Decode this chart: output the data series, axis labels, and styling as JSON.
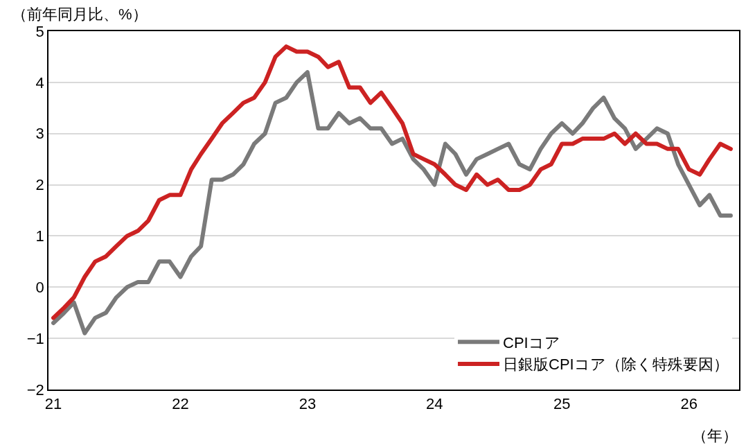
{
  "chart_data": {
    "type": "line",
    "ylabel": "（前年同月比、%）",
    "xlabel": "（年）",
    "x": [
      "2021-01",
      "2021-02",
      "2021-03",
      "2021-04",
      "2021-05",
      "2021-06",
      "2021-07",
      "2021-08",
      "2021-09",
      "2021-10",
      "2021-11",
      "2021-12",
      "2022-01",
      "2022-02",
      "2022-03",
      "2022-04",
      "2022-05",
      "2022-06",
      "2022-07",
      "2022-08",
      "2022-09",
      "2022-10",
      "2022-11",
      "2022-12",
      "2023-01",
      "2023-02",
      "2023-03",
      "2023-04",
      "2023-05",
      "2023-06",
      "2023-07",
      "2023-08",
      "2023-09",
      "2023-10",
      "2023-11",
      "2023-12",
      "2024-01",
      "2024-02",
      "2024-03",
      "2024-04",
      "2024-05",
      "2024-06",
      "2024-07",
      "2024-08",
      "2024-09",
      "2024-10",
      "2024-11",
      "2024-12",
      "2025-01",
      "2025-02",
      "2025-03",
      "2025-04",
      "2025-05",
      "2025-06",
      "2025-07",
      "2025-08",
      "2025-09",
      "2025-10",
      "2025-11",
      "2025-12",
      "2026-01",
      "2026-02",
      "2026-03",
      "2026-04",
      "2026-05"
    ],
    "series": [
      {
        "name": "CPIコア",
        "color": "#7a7a7a",
        "values": [
          -0.7,
          -0.5,
          -0.3,
          -0.9,
          -0.6,
          -0.5,
          -0.2,
          0.0,
          0.1,
          0.1,
          0.5,
          0.5,
          0.2,
          0.6,
          0.8,
          2.1,
          2.1,
          2.2,
          2.4,
          2.8,
          3.0,
          3.6,
          3.7,
          4.0,
          4.2,
          3.1,
          3.1,
          3.4,
          3.2,
          3.3,
          3.1,
          3.1,
          2.8,
          2.9,
          2.5,
          2.3,
          2.0,
          2.8,
          2.6,
          2.2,
          2.5,
          2.6,
          2.7,
          2.8,
          2.4,
          2.3,
          2.7,
          3.0,
          3.2,
          3.0,
          3.2,
          3.5,
          3.7,
          3.3,
          3.1,
          2.7,
          2.9,
          3.1,
          3.0,
          2.4,
          2.0,
          1.6,
          1.8,
          1.4,
          1.4
        ]
      },
      {
        "name": "日銀版CPIコア（除く特殊要因）",
        "color": "#cc2222",
        "values": [
          -0.6,
          -0.4,
          -0.2,
          0.2,
          0.5,
          0.6,
          0.8,
          1.0,
          1.1,
          1.3,
          1.7,
          1.8,
          1.8,
          2.3,
          2.6,
          2.9,
          3.2,
          3.4,
          3.6,
          3.7,
          4.0,
          4.5,
          4.7,
          4.6,
          4.6,
          4.5,
          4.3,
          4.4,
          3.9,
          3.9,
          3.6,
          3.8,
          3.5,
          3.2,
          2.6,
          2.5,
          2.4,
          2.2,
          2.0,
          1.9,
          2.2,
          2.0,
          2.1,
          1.9,
          1.9,
          2.0,
          2.3,
          2.4,
          2.8,
          2.8,
          2.9,
          2.9,
          2.9,
          3.0,
          2.8,
          3.0,
          2.8,
          2.8,
          2.7,
          2.7,
          2.3,
          2.2,
          2.5,
          2.8,
          2.7
        ]
      }
    ],
    "xlim": [
      "2020-12-18",
      "2026-05-25"
    ],
    "xticks": [
      {
        "value": "2021-01-01",
        "label": "21"
      },
      {
        "value": "2022-01-01",
        "label": "22"
      },
      {
        "value": "2023-01-01",
        "label": "23"
      },
      {
        "value": "2024-01-01",
        "label": "24"
      },
      {
        "value": "2025-01-01",
        "label": "25"
      },
      {
        "value": "2026-01-01",
        "label": "26"
      }
    ],
    "ylim": [
      -2,
      5
    ],
    "yticks": [
      {
        "value": -2,
        "label": "−2"
      },
      {
        "value": -1,
        "label": "−1"
      },
      0,
      1,
      2,
      3,
      4,
      5
    ],
    "grid": "y",
    "legend": "bottom right",
    "marker": "none",
    "line_style": "solid"
  }
}
